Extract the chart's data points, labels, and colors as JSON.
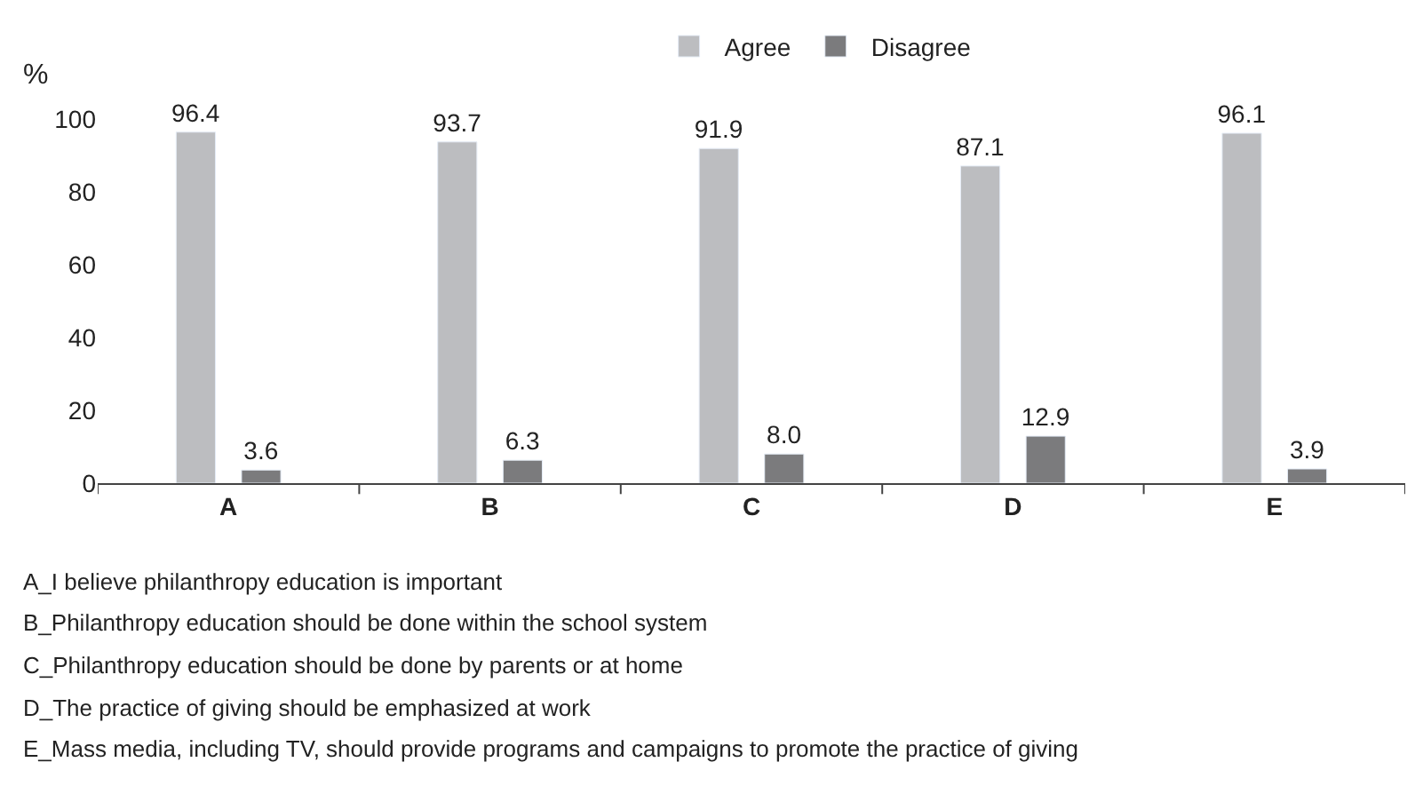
{
  "chart_data": {
    "type": "bar",
    "ylabel": "%",
    "categories": [
      "A",
      "B",
      "C",
      "D",
      "E"
    ],
    "series": [
      {
        "name": "Agree",
        "color": "#bcbdc0",
        "values": [
          96.4,
          93.7,
          91.9,
          87.1,
          96.1
        ]
      },
      {
        "name": "Disagree",
        "color": "#7b7b7d",
        "values": [
          3.6,
          6.3,
          8.0,
          12.9,
          3.9
        ]
      }
    ],
    "value_labels": [
      [
        "96.4",
        "93.7",
        "91.9",
        "87.1",
        "96.1"
      ],
      [
        "3.6",
        "6.3",
        "8.0",
        "12.9",
        "3.9"
      ]
    ],
    "ylim": [
      0,
      100
    ],
    "yticks": [
      0,
      20,
      40,
      60,
      80,
      100
    ],
    "legend": "top",
    "annotations": [
      "A_I believe philanthropy education is important",
      "B_Philanthropy education should be done within the school system",
      "C_Philanthropy education should be done by parents or at home",
      "D_The practice of giving should be emphasized at work",
      "E_Mass media, including TV, should provide programs and campaigns to promote the practice of giving"
    ]
  }
}
